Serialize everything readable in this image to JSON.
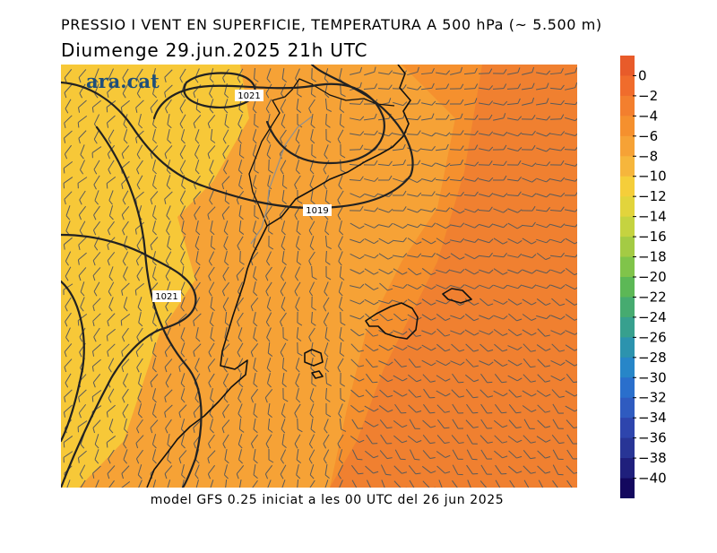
{
  "header": {
    "title": "PRESSIO I VENT EN SUPERFICIE, TEMPERATURA A 500 hPa (~ 5.500 m)",
    "subtitle": "Diumenge  29.jun.2025 21h UTC"
  },
  "footer": {
    "model_note": "model GFS 0.25 iniciat a les 00 UTC del 26 jun 2025"
  },
  "map": {
    "logo": "ara.cat",
    "isobar_labels": [
      "1021",
      "1019",
      "1021"
    ],
    "colors": {
      "ocean_fill": "#f5902e",
      "land_fill": "#f6a236",
      "cold_fill": "#f7c838",
      "warm_fill": "#f08030",
      "isobar": "#222222",
      "barbs": "#5a5a5a",
      "coast": "#111111"
    }
  },
  "colorbar": {
    "labels": [
      "0",
      "−2",
      "−4",
      "−6",
      "−8",
      "−10",
      "−12",
      "−14",
      "−16",
      "−18",
      "−20",
      "−22",
      "−24",
      "−26",
      "−28",
      "−30",
      "−32",
      "−34",
      "−36",
      "−38",
      "−40"
    ],
    "colors": [
      "#e85b2a",
      "#f06c2c",
      "#f37f2e",
      "#f5902e",
      "#f6a236",
      "#f6b63c",
      "#f5ce3a",
      "#e2d43c",
      "#c5d340",
      "#a4cb44",
      "#80c44a",
      "#5cb856",
      "#46ab70",
      "#37a08e",
      "#2c93ae",
      "#2786c8",
      "#2a6fcc",
      "#2f5bc0",
      "#2e45ad",
      "#283596",
      "#1f1f7c",
      "#13085e"
    ]
  }
}
